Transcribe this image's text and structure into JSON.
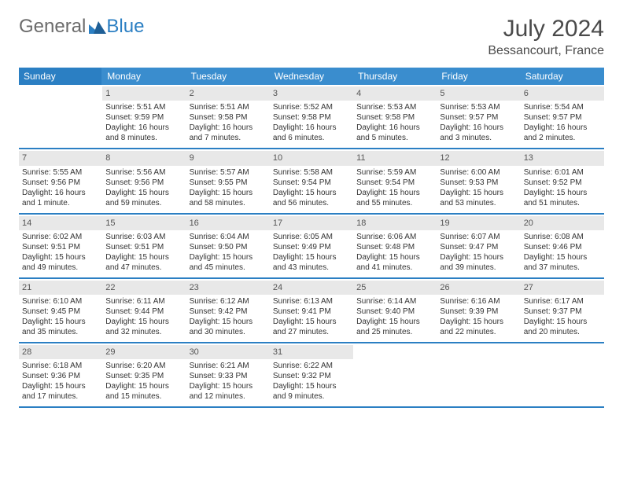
{
  "brand": {
    "part1": "General",
    "part2": "Blue"
  },
  "title": "July 2024",
  "location": "Bessancourt, France",
  "colors": {
    "header_blue": "#3a8dce",
    "header_blue_dark": "#2b7fc3",
    "daynum_bg": "#e8e8e8",
    "text": "#333333",
    "title_text": "#4a4a4a",
    "logo_gray": "#6b6b6b"
  },
  "weekdays": [
    "Sunday",
    "Monday",
    "Tuesday",
    "Wednesday",
    "Thursday",
    "Friday",
    "Saturday"
  ],
  "weeks": [
    [
      {
        "n": "",
        "sun": "",
        "set": "",
        "dl": "",
        "empty": true
      },
      {
        "n": "1",
        "sun": "Sunrise: 5:51 AM",
        "set": "Sunset: 9:59 PM",
        "dl": "Daylight: 16 hours and 8 minutes."
      },
      {
        "n": "2",
        "sun": "Sunrise: 5:51 AM",
        "set": "Sunset: 9:58 PM",
        "dl": "Daylight: 16 hours and 7 minutes."
      },
      {
        "n": "3",
        "sun": "Sunrise: 5:52 AM",
        "set": "Sunset: 9:58 PM",
        "dl": "Daylight: 16 hours and 6 minutes."
      },
      {
        "n": "4",
        "sun": "Sunrise: 5:53 AM",
        "set": "Sunset: 9:58 PM",
        "dl": "Daylight: 16 hours and 5 minutes."
      },
      {
        "n": "5",
        "sun": "Sunrise: 5:53 AM",
        "set": "Sunset: 9:57 PM",
        "dl": "Daylight: 16 hours and 3 minutes."
      },
      {
        "n": "6",
        "sun": "Sunrise: 5:54 AM",
        "set": "Sunset: 9:57 PM",
        "dl": "Daylight: 16 hours and 2 minutes."
      }
    ],
    [
      {
        "n": "7",
        "sun": "Sunrise: 5:55 AM",
        "set": "Sunset: 9:56 PM",
        "dl": "Daylight: 16 hours and 1 minute."
      },
      {
        "n": "8",
        "sun": "Sunrise: 5:56 AM",
        "set": "Sunset: 9:56 PM",
        "dl": "Daylight: 15 hours and 59 minutes."
      },
      {
        "n": "9",
        "sun": "Sunrise: 5:57 AM",
        "set": "Sunset: 9:55 PM",
        "dl": "Daylight: 15 hours and 58 minutes."
      },
      {
        "n": "10",
        "sun": "Sunrise: 5:58 AM",
        "set": "Sunset: 9:54 PM",
        "dl": "Daylight: 15 hours and 56 minutes."
      },
      {
        "n": "11",
        "sun": "Sunrise: 5:59 AM",
        "set": "Sunset: 9:54 PM",
        "dl": "Daylight: 15 hours and 55 minutes."
      },
      {
        "n": "12",
        "sun": "Sunrise: 6:00 AM",
        "set": "Sunset: 9:53 PM",
        "dl": "Daylight: 15 hours and 53 minutes."
      },
      {
        "n": "13",
        "sun": "Sunrise: 6:01 AM",
        "set": "Sunset: 9:52 PM",
        "dl": "Daylight: 15 hours and 51 minutes."
      }
    ],
    [
      {
        "n": "14",
        "sun": "Sunrise: 6:02 AM",
        "set": "Sunset: 9:51 PM",
        "dl": "Daylight: 15 hours and 49 minutes."
      },
      {
        "n": "15",
        "sun": "Sunrise: 6:03 AM",
        "set": "Sunset: 9:51 PM",
        "dl": "Daylight: 15 hours and 47 minutes."
      },
      {
        "n": "16",
        "sun": "Sunrise: 6:04 AM",
        "set": "Sunset: 9:50 PM",
        "dl": "Daylight: 15 hours and 45 minutes."
      },
      {
        "n": "17",
        "sun": "Sunrise: 6:05 AM",
        "set": "Sunset: 9:49 PM",
        "dl": "Daylight: 15 hours and 43 minutes."
      },
      {
        "n": "18",
        "sun": "Sunrise: 6:06 AM",
        "set": "Sunset: 9:48 PM",
        "dl": "Daylight: 15 hours and 41 minutes."
      },
      {
        "n": "19",
        "sun": "Sunrise: 6:07 AM",
        "set": "Sunset: 9:47 PM",
        "dl": "Daylight: 15 hours and 39 minutes."
      },
      {
        "n": "20",
        "sun": "Sunrise: 6:08 AM",
        "set": "Sunset: 9:46 PM",
        "dl": "Daylight: 15 hours and 37 minutes."
      }
    ],
    [
      {
        "n": "21",
        "sun": "Sunrise: 6:10 AM",
        "set": "Sunset: 9:45 PM",
        "dl": "Daylight: 15 hours and 35 minutes."
      },
      {
        "n": "22",
        "sun": "Sunrise: 6:11 AM",
        "set": "Sunset: 9:44 PM",
        "dl": "Daylight: 15 hours and 32 minutes."
      },
      {
        "n": "23",
        "sun": "Sunrise: 6:12 AM",
        "set": "Sunset: 9:42 PM",
        "dl": "Daylight: 15 hours and 30 minutes."
      },
      {
        "n": "24",
        "sun": "Sunrise: 6:13 AM",
        "set": "Sunset: 9:41 PM",
        "dl": "Daylight: 15 hours and 27 minutes."
      },
      {
        "n": "25",
        "sun": "Sunrise: 6:14 AM",
        "set": "Sunset: 9:40 PM",
        "dl": "Daylight: 15 hours and 25 minutes."
      },
      {
        "n": "26",
        "sun": "Sunrise: 6:16 AM",
        "set": "Sunset: 9:39 PM",
        "dl": "Daylight: 15 hours and 22 minutes."
      },
      {
        "n": "27",
        "sun": "Sunrise: 6:17 AM",
        "set": "Sunset: 9:37 PM",
        "dl": "Daylight: 15 hours and 20 minutes."
      }
    ],
    [
      {
        "n": "28",
        "sun": "Sunrise: 6:18 AM",
        "set": "Sunset: 9:36 PM",
        "dl": "Daylight: 15 hours and 17 minutes."
      },
      {
        "n": "29",
        "sun": "Sunrise: 6:20 AM",
        "set": "Sunset: 9:35 PM",
        "dl": "Daylight: 15 hours and 15 minutes."
      },
      {
        "n": "30",
        "sun": "Sunrise: 6:21 AM",
        "set": "Sunset: 9:33 PM",
        "dl": "Daylight: 15 hours and 12 minutes."
      },
      {
        "n": "31",
        "sun": "Sunrise: 6:22 AM",
        "set": "Sunset: 9:32 PM",
        "dl": "Daylight: 15 hours and 9 minutes."
      },
      {
        "n": "",
        "sun": "",
        "set": "",
        "dl": "",
        "empty": true
      },
      {
        "n": "",
        "sun": "",
        "set": "",
        "dl": "",
        "empty": true
      },
      {
        "n": "",
        "sun": "",
        "set": "",
        "dl": "",
        "empty": true
      }
    ]
  ]
}
